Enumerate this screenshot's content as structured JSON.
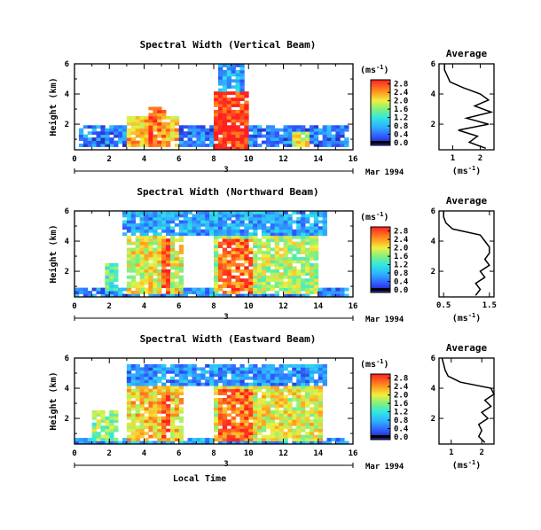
{
  "figure": {
    "x_axis_label": "Local Time",
    "y_axis_label": "Height (km)",
    "date_label": "Mar 1994",
    "day_marker": "3",
    "cbar_unit_prefix": "(ms",
    "cbar_unit_exp": "-1",
    "cbar_unit_suffix": ")",
    "avg_title": "Average",
    "avg_xlabel_prefix": "(ms",
    "avg_xlabel_exp": "-1",
    "avg_xlabel_suffix": ")"
  },
  "chart_data": [
    {
      "type": "heatmap",
      "title": "Spectral Width (Vertical Beam)",
      "xlabel": "Local Time",
      "ylabel": "Height (km)",
      "xlim": [
        0,
        16
      ],
      "ylim": [
        0.3,
        6
      ],
      "xticks": [
        0,
        2,
        4,
        6,
        8,
        10,
        12,
        14,
        16
      ],
      "yticks": [
        2,
        4,
        6
      ],
      "colorbar": {
        "ticks": [
          0.0,
          0.4,
          0.8,
          1.2,
          1.6,
          2.0,
          2.4,
          2.8
        ],
        "range": [
          0,
          3
        ]
      },
      "blocks": [
        {
          "x": [
            0.2,
            15.8
          ],
          "h": [
            0.6,
            1.9
          ],
          "v": 0.6
        },
        {
          "x": [
            3.0,
            6.0
          ],
          "h": [
            0.5,
            2.6
          ],
          "v": 2.3
        },
        {
          "x": [
            4.3,
            5.3
          ],
          "h": [
            0.5,
            3.2
          ],
          "v": 2.6
        },
        {
          "x": [
            8.0,
            10.0
          ],
          "h": [
            0.4,
            4.2
          ],
          "v": 2.9
        },
        {
          "x": [
            8.3,
            9.8
          ],
          "h": [
            4.2,
            5.9
          ],
          "v": 0.8
        },
        {
          "x": [
            12.6,
            13.6
          ],
          "h": [
            0.6,
            1.6
          ],
          "v": 2.0
        }
      ],
      "average": {
        "xlim": [
          0.5,
          2.5
        ],
        "xticks": [
          1,
          2
        ],
        "ylim": [
          0.3,
          6
        ],
        "yticks": [
          2,
          4,
          6
        ],
        "height": [
          0.4,
          0.8,
          1.2,
          1.6,
          2.0,
          2.4,
          2.8,
          3.2,
          3.6,
          4.0,
          4.4,
          4.8,
          5.2,
          5.6,
          6.0
        ],
        "value": [
          2.2,
          1.6,
          1.9,
          1.2,
          2.3,
          1.5,
          2.4,
          1.8,
          2.3,
          2.0,
          1.4,
          0.9,
          0.8,
          0.7,
          0.7
        ]
      }
    },
    {
      "type": "heatmap",
      "title": "Spectral Width (Northward Beam)",
      "xlabel": "Local Time",
      "ylabel": "Height (km)",
      "xlim": [
        0,
        16
      ],
      "ylim": [
        0.3,
        6
      ],
      "xticks": [
        0,
        2,
        4,
        6,
        8,
        10,
        12,
        14,
        16
      ],
      "yticks": [
        2,
        4,
        6
      ],
      "colorbar": {
        "ticks": [
          0.0,
          0.4,
          0.8,
          1.2,
          1.6,
          2.0,
          2.4,
          2.8
        ],
        "range": [
          0,
          3
        ]
      },
      "blocks": [
        {
          "x": [
            0.0,
            15.8
          ],
          "h": [
            0.4,
            0.9
          ],
          "v": 0.7
        },
        {
          "x": [
            1.8,
            2.6
          ],
          "h": [
            0.8,
            2.6
          ],
          "v": 1.5
        },
        {
          "x": [
            3.0,
            6.2
          ],
          "h": [
            0.5,
            4.4
          ],
          "v": 2.0
        },
        {
          "x": [
            5.0,
            5.5
          ],
          "h": [
            0.5,
            4.2
          ],
          "v": 2.8
        },
        {
          "x": [
            8.0,
            14.0
          ],
          "h": [
            0.5,
            4.4
          ],
          "v": 1.8
        },
        {
          "x": [
            8.2,
            10.2
          ],
          "h": [
            0.5,
            4.2
          ],
          "v": 2.6
        },
        {
          "x": [
            2.8,
            14.5
          ],
          "h": [
            4.4,
            5.9
          ],
          "v": 0.8
        }
      ],
      "average": {
        "xlim": [
          0.4,
          1.6
        ],
        "xticks": [
          0.5,
          1.5
        ],
        "ylim": [
          0.3,
          6
        ],
        "yticks": [
          2,
          4,
          6
        ],
        "height": [
          0.4,
          0.8,
          1.2,
          1.6,
          2.0,
          2.4,
          2.8,
          3.2,
          3.6,
          4.0,
          4.4,
          4.8,
          5.2,
          5.6,
          6.0
        ],
        "value": [
          1.2,
          1.3,
          1.2,
          1.4,
          1.3,
          1.5,
          1.4,
          1.5,
          1.5,
          1.4,
          1.3,
          0.7,
          0.55,
          0.5,
          0.5
        ]
      }
    },
    {
      "type": "heatmap",
      "title": "Spectral Width (Eastward Beam)",
      "xlabel": "Local Time",
      "ylabel": "Height (km)",
      "xlim": [
        0,
        16
      ],
      "ylim": [
        0.3,
        6
      ],
      "xticks": [
        0,
        2,
        4,
        6,
        8,
        10,
        12,
        14,
        16
      ],
      "yticks": [
        2,
        4,
        6
      ],
      "colorbar": {
        "ticks": [
          0.0,
          0.4,
          0.8,
          1.2,
          1.6,
          2.0,
          2.4,
          2.8
        ],
        "range": [
          0,
          3
        ]
      },
      "blocks": [
        {
          "x": [
            0.0,
            15.8
          ],
          "h": [
            0.4,
            0.8
          ],
          "v": 0.8
        },
        {
          "x": [
            1.0,
            2.4
          ],
          "h": [
            0.6,
            2.6
          ],
          "v": 1.7
        },
        {
          "x": [
            3.0,
            6.3
          ],
          "h": [
            0.5,
            4.2
          ],
          "v": 2.2
        },
        {
          "x": [
            5.0,
            5.5
          ],
          "h": [
            0.5,
            3.8
          ],
          "v": 2.8
        },
        {
          "x": [
            8.0,
            14.2
          ],
          "h": [
            0.5,
            4.2
          ],
          "v": 2.0
        },
        {
          "x": [
            8.2,
            10.2
          ],
          "h": [
            0.5,
            4.0
          ],
          "v": 2.6
        },
        {
          "x": [
            3.0,
            14.5
          ],
          "h": [
            4.2,
            5.5
          ],
          "v": 0.7
        }
      ],
      "average": {
        "xlim": [
          0.6,
          2.4
        ],
        "xticks": [
          1,
          2
        ],
        "ylim": [
          0.3,
          6
        ],
        "yticks": [
          2,
          4,
          6
        ],
        "height": [
          0.4,
          0.8,
          1.2,
          1.6,
          2.0,
          2.4,
          2.8,
          3.2,
          3.6,
          4.0,
          4.4,
          4.8,
          5.2,
          5.6,
          6.0
        ],
        "value": [
          2.1,
          1.9,
          2.0,
          1.9,
          2.2,
          2.0,
          2.3,
          2.1,
          2.4,
          2.3,
          1.3,
          0.9,
          0.8,
          0.75,
          0.7
        ]
      }
    }
  ]
}
